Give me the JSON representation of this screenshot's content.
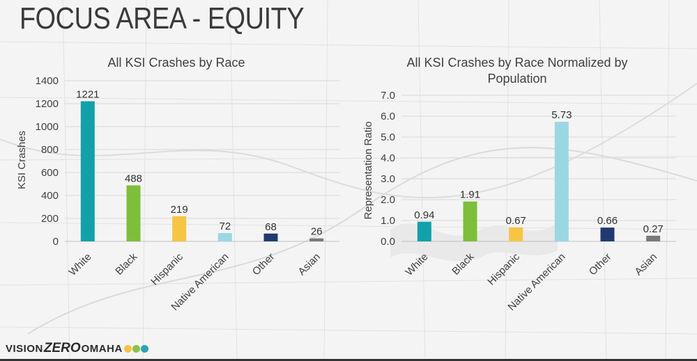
{
  "page": {
    "title": "FOCUS AREA - EQUITY",
    "logo": {
      "vision": "VISION",
      "zero": "ZERO",
      "omaha": "OMAHA",
      "dot_colors": [
        "#f6c344",
        "#8bc34a",
        "#2ba3b5"
      ]
    }
  },
  "chart_data": [
    {
      "type": "bar",
      "title": "All KSI Crashes by Race",
      "xlabel": "",
      "ylabel": "KSI Crashes",
      "ylim": [
        0,
        1400
      ],
      "yticks": [
        "0",
        "200",
        "400",
        "600",
        "800",
        "1000",
        "1200",
        "1400"
      ],
      "categories": [
        "White",
        "Black",
        "Hispanic",
        "Native American",
        "Other",
        "Asian"
      ],
      "values": [
        1221,
        488,
        219,
        72,
        68,
        26
      ],
      "value_labels": [
        "1221",
        "488",
        "219",
        "72",
        "68",
        "26"
      ],
      "colors": [
        "#12a0aa",
        "#7dbf3b",
        "#f7c544",
        "#9bd7e2",
        "#1f3a70",
        "#7a7a7a"
      ],
      "gridlines": true
    },
    {
      "type": "bar",
      "title": "All KSI Crashes by Race Normalized by Population",
      "title_lines": [
        "All KSI Crashes by Race Normalized by",
        "Population"
      ],
      "xlabel": "",
      "ylabel": "Representation Ratio",
      "ylim": [
        0,
        7
      ],
      "yticks": [
        "0.0",
        "1.0",
        "2.0",
        "3.0",
        "4.0",
        "5.0",
        "6.0",
        "7.0"
      ],
      "categories": [
        "White",
        "Black",
        "Hispanic",
        "Native American",
        "Other",
        "Asian"
      ],
      "values": [
        0.94,
        1.91,
        0.67,
        5.73,
        0.66,
        0.27
      ],
      "value_labels": [
        "0.94",
        "1.91",
        "0.67",
        "5.73",
        "0.66",
        "0.27"
      ],
      "colors": [
        "#12a0aa",
        "#7dbf3b",
        "#f7c544",
        "#9bd7e2",
        "#1f3a70",
        "#7a7a7a"
      ],
      "gridlines": true
    }
  ]
}
